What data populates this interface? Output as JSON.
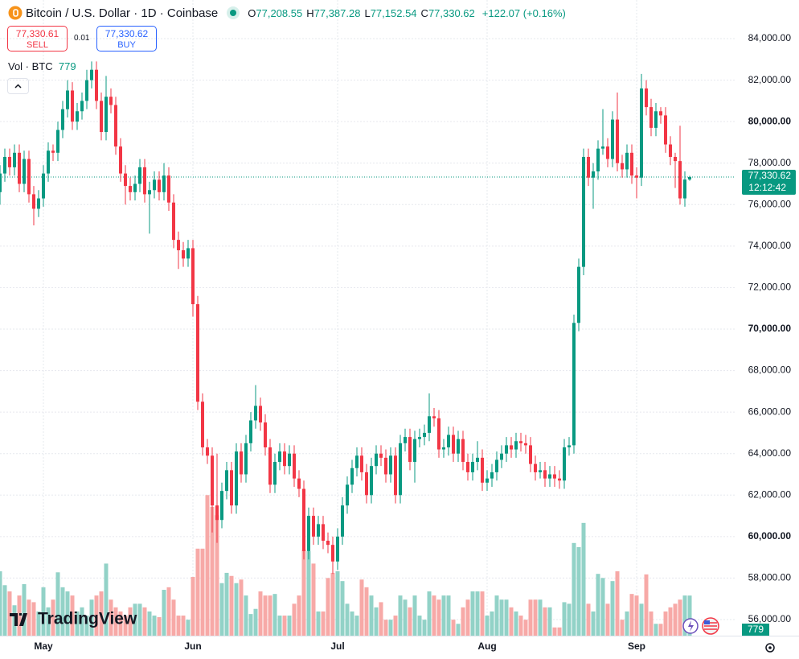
{
  "header": {
    "title": "Bitcoin / U.S. Dollar · 1D · Coinbase",
    "ohlc": [
      {
        "key": "O",
        "value": "77,208.55"
      },
      {
        "key": "H",
        "value": "77,387.28"
      },
      {
        "key": "L",
        "value": "77,152.54"
      },
      {
        "key": "C",
        "value": "77,330.62"
      }
    ],
    "change": "+122.07 (+0.16%)"
  },
  "trade": {
    "sell_price": "77,330.61",
    "sell": "SELL",
    "spread": "0.01",
    "buy_price": "77,330.62",
    "buy": "BUY"
  },
  "price_tag": {
    "price": "77,330.62",
    "countdown": "12:12:42"
  },
  "brand": "TradingView",
  "chart_data": {
    "type": "candlestick",
    "title": "Bitcoin / U.S. Dollar · 1D · Coinbase",
    "categories": [
      null,
      null,
      null,
      null,
      null,
      null,
      null,
      null,
      null,
      "May",
      null,
      null,
      null,
      null,
      null,
      null,
      null,
      null,
      null,
      null,
      null,
      null,
      null,
      null,
      null,
      null,
      null,
      null,
      null,
      null,
      null,
      null,
      null,
      null,
      null,
      null,
      null,
      null,
      null,
      null,
      "Jun",
      null,
      null,
      null,
      null,
      null,
      null,
      null,
      null,
      null,
      null,
      null,
      null,
      null,
      null,
      null,
      null,
      null,
      null,
      null,
      null,
      null,
      null,
      null,
      null,
      null,
      null,
      null,
      null,
      null,
      "Jul",
      null,
      null,
      null,
      null,
      null,
      null,
      null,
      null,
      null,
      null,
      null,
      null,
      null,
      null,
      null,
      null,
      null,
      null,
      null,
      null,
      null,
      null,
      null,
      null,
      null,
      null,
      null,
      null,
      null,
      null,
      "Aug",
      null,
      null,
      null,
      null,
      null,
      null,
      null,
      null,
      null,
      null,
      null,
      null,
      null,
      null,
      null,
      null,
      null,
      null,
      null,
      null,
      null,
      null,
      null,
      null,
      null,
      null,
      null,
      null,
      null,
      null,
      "Sep",
      null,
      null,
      null,
      null,
      null,
      null,
      null,
      null,
      null,
      null,
      null
    ],
    "open": [
      76600,
      77500,
      78300,
      77800,
      78500,
      77000,
      78200,
      76500,
      75800,
      76300,
      77500,
      78600,
      78500,
      79600,
      80600,
      81500,
      80000,
      80500,
      81000,
      82000,
      82500,
      81000,
      79500,
      81200,
      80800,
      78800,
      77500,
      76900,
      76600,
      77000,
      77800,
      76500,
      76700,
      77200,
      76600,
      77400,
      76100,
      74300,
      73800,
      73400,
      73900,
      71200,
      66500,
      64300,
      63900,
      61500,
      60800,
      62200,
      63200,
      61500,
      64100,
      63000,
      64500,
      65600,
      66300,
      65500,
      64300,
      62500,
      63600,
      64100,
      63400,
      64000,
      62800,
      62300,
      59300,
      61000,
      60000,
      60600,
      59800,
      59600,
      58800,
      60000,
      61500,
      62500,
      63300,
      63900,
      63100,
      62000,
      63400,
      64000,
      63800,
      63000,
      63900,
      62000,
      64500,
      64800,
      63600,
      64700,
      64800,
      65000,
      65800,
      65700,
      64200,
      64300,
      64900,
      64000,
      64700,
      63600,
      63100,
      63600,
      63800,
      62600,
      62800,
      63100,
      63700,
      64000,
      64400,
      64200,
      64600,
      64500,
      64400,
      63500,
      63100,
      63200,
      62800,
      63000,
      62800,
      62700,
      64300,
      64400,
      70300,
      73000,
      78300,
      77300,
      77600,
      78700,
      78800,
      78200,
      80100,
      78000,
      77700,
      78500,
      77400,
      77300,
      81600,
      80700,
      79700,
      80500,
      80300,
      78900,
      78300,
      78100,
      76300,
      77208.55
    ],
    "high": [
      77900,
      78700,
      78700,
      78900,
      78900,
      78600,
      78600,
      76900,
      76700,
      77900,
      79000,
      78900,
      80000,
      81000,
      82000,
      81900,
      80900,
      81400,
      82500,
      82900,
      82900,
      81400,
      82200,
      81600,
      81200,
      79200,
      77900,
      77300,
      77400,
      78200,
      78200,
      77100,
      77600,
      77600,
      78000,
      77800,
      76500,
      74700,
      74200,
      74300,
      74300,
      71600,
      66900,
      64700,
      64300,
      64000,
      62600,
      63600,
      63600,
      64500,
      64500,
      64900,
      66000,
      67300,
      66700,
      65900,
      64700,
      64000,
      64500,
      64500,
      64400,
      64400,
      63200,
      62700,
      61400,
      61400,
      61000,
      61000,
      60200,
      60000,
      60400,
      61900,
      62900,
      63700,
      64300,
      64300,
      63500,
      63800,
      64400,
      64400,
      64200,
      64300,
      64300,
      64900,
      65200,
      65200,
      65100,
      65200,
      65400,
      66900,
      66200,
      66100,
      64700,
      65300,
      65300,
      65100,
      65100,
      64000,
      64000,
      64600,
      64200,
      63200,
      63500,
      64100,
      64400,
      64800,
      64800,
      65000,
      65000,
      64900,
      64800,
      63900,
      63600,
      63600,
      63400,
      63400,
      63200,
      64700,
      64800,
      70700,
      73400,
      78700,
      78700,
      78000,
      79100,
      80600,
      79200,
      80500,
      81400,
      78400,
      78900,
      78900,
      77800,
      82300,
      82000,
      81100,
      80900,
      80700,
      80700,
      79300,
      78500,
      79800,
      77600,
      77387.28
    ],
    "low": [
      76000,
      77100,
      77400,
      77400,
      76600,
      76600,
      76100,
      75000,
      75400,
      75900,
      77100,
      78100,
      78100,
      79200,
      80200,
      79600,
      79600,
      80100,
      80600,
      81600,
      80600,
      79100,
      79100,
      80400,
      78400,
      77100,
      76000,
      76200,
      76200,
      76600,
      76100,
      74600,
      76300,
      76200,
      76200,
      75700,
      73900,
      72900,
      73000,
      73000,
      70600,
      66100,
      63900,
      63500,
      60200,
      59700,
      60400,
      61800,
      61100,
      61100,
      62600,
      62600,
      64100,
      65200,
      65100,
      63900,
      62100,
      62100,
      63200,
      63000,
      63000,
      62400,
      61900,
      58900,
      58900,
      59600,
      59600,
      59400,
      59200,
      58200,
      58400,
      59600,
      61100,
      62100,
      62900,
      62700,
      61600,
      61600,
      63000,
      63400,
      62600,
      62600,
      61600,
      61600,
      64100,
      63200,
      62600,
      64300,
      64400,
      64600,
      65300,
      63800,
      63800,
      63900,
      63600,
      63600,
      63200,
      62700,
      62700,
      63200,
      62200,
      62200,
      62400,
      62700,
      63300,
      63600,
      63800,
      63800,
      64100,
      64000,
      63100,
      62700,
      62800,
      62400,
      62400,
      62400,
      62300,
      62300,
      63900,
      64000,
      69900,
      72600,
      76900,
      75800,
      77200,
      78400,
      77800,
      77800,
      77600,
      77300,
      77300,
      77000,
      76300,
      76900,
      80300,
      79300,
      79300,
      79900,
      78500,
      77900,
      76800,
      76000,
      75900,
      77152.54
    ],
    "close": [
      77500,
      78300,
      77800,
      78500,
      77000,
      78200,
      76500,
      75800,
      76300,
      77500,
      78600,
      78500,
      79600,
      80600,
      81500,
      80000,
      80500,
      81000,
      82000,
      82500,
      81000,
      79500,
      81200,
      80800,
      78800,
      77500,
      76900,
      76600,
      77000,
      77800,
      76500,
      76700,
      77200,
      76600,
      77400,
      76100,
      74300,
      73800,
      73400,
      73900,
      71200,
      66500,
      64300,
      63900,
      61500,
      60800,
      62200,
      63200,
      61500,
      64100,
      63000,
      64500,
      65600,
      66300,
      65500,
      64300,
      62500,
      63600,
      64100,
      63400,
      64000,
      62800,
      62300,
      59300,
      61000,
      60000,
      60600,
      59800,
      59600,
      58800,
      60000,
      61500,
      62500,
      63300,
      63900,
      63100,
      62000,
      63400,
      64000,
      63800,
      63000,
      63900,
      62000,
      64500,
      64800,
      63600,
      64700,
      64800,
      65000,
      65800,
      65700,
      64200,
      64300,
      64900,
      64000,
      64700,
      63600,
      63100,
      63600,
      63800,
      62600,
      62800,
      63100,
      63700,
      64000,
      64400,
      64200,
      64600,
      64500,
      64400,
      63500,
      63100,
      63200,
      62800,
      63000,
      62800,
      62700,
      64300,
      64400,
      70300,
      73000,
      78300,
      77300,
      77600,
      78700,
      78800,
      78200,
      80100,
      78000,
      77700,
      78500,
      77400,
      77300,
      81600,
      80700,
      79700,
      80500,
      80300,
      78900,
      78300,
      78100,
      76300,
      77208.55,
      77330.62
    ],
    "up_color": "#089981",
    "down_color": "#f23645",
    "volume_up_color": "#92d2c7",
    "volume_down_color": "#f7a9a7",
    "volume": {
      "name": "Vol · BTC",
      "axis": "y2",
      "values": [
        1250,
        980,
        860,
        590,
        780,
        1000,
        700,
        650,
        470,
        940,
        550,
        700,
        1230,
        940,
        860,
        780,
        470,
        550,
        390,
        700,
        780,
        860,
        1400,
        700,
        550,
        470,
        390,
        550,
        620,
        620,
        550,
        470,
        390,
        360,
        890,
        940,
        700,
        390,
        390,
        310,
        1140,
        1690,
        1690,
        2730,
        2500,
        2340,
        1020,
        1220,
        1160,
        1020,
        1090,
        780,
        420,
        520,
        860,
        780,
        780,
        810,
        390,
        390,
        390,
        620,
        780,
        1670,
        1640,
        1400,
        470,
        470,
        1120,
        1220,
        1250,
        1060,
        620,
        470,
        390,
        1090,
        940,
        780,
        550,
        650,
        310,
        310,
        390,
        780,
        700,
        550,
        780,
        390,
        310,
        860,
        780,
        700,
        780,
        780,
        310,
        230,
        550,
        700,
        860,
        860,
        860,
        390,
        470,
        780,
        700,
        700,
        550,
        470,
        390,
        310,
        700,
        700,
        700,
        550,
        550,
        160,
        160,
        650,
        620,
        1800,
        1720,
        2190,
        620,
        470,
        1200,
        1120,
        620,
        1060,
        1250,
        310,
        470,
        810,
        780,
        620,
        1190,
        470,
        230,
        230,
        470,
        550,
        620,
        700,
        780,
        779
      ]
    },
    "ylim": [
      55224,
      85862
    ],
    "y2lim": [
      0,
      3000
    ],
    "yticks": [
      {
        "value": 84000,
        "label": "84,000.00"
      },
      {
        "value": 82000,
        "label": "82,000.00"
      },
      {
        "value": 80000,
        "label": "80,000.00"
      },
      {
        "value": 78000,
        "label": "78,000.00"
      },
      {
        "value": 76000,
        "label": "76,000.00"
      },
      {
        "value": 74000,
        "label": "74,000.00"
      },
      {
        "value": 72000,
        "label": "72,000.00"
      },
      {
        "value": 70000,
        "label": "70,000.00"
      },
      {
        "value": 68000,
        "label": "68,000.00"
      },
      {
        "value": 66000,
        "label": "66,000.00"
      },
      {
        "value": 64000,
        "label": "64,000.00"
      },
      {
        "value": 62000,
        "label": "62,000.00"
      },
      {
        "value": 60000,
        "label": "60,000.00"
      },
      {
        "value": 58000,
        "label": "58,000.00"
      },
      {
        "value": 56000,
        "label": "56,000.00"
      }
    ],
    "grid": true
  }
}
